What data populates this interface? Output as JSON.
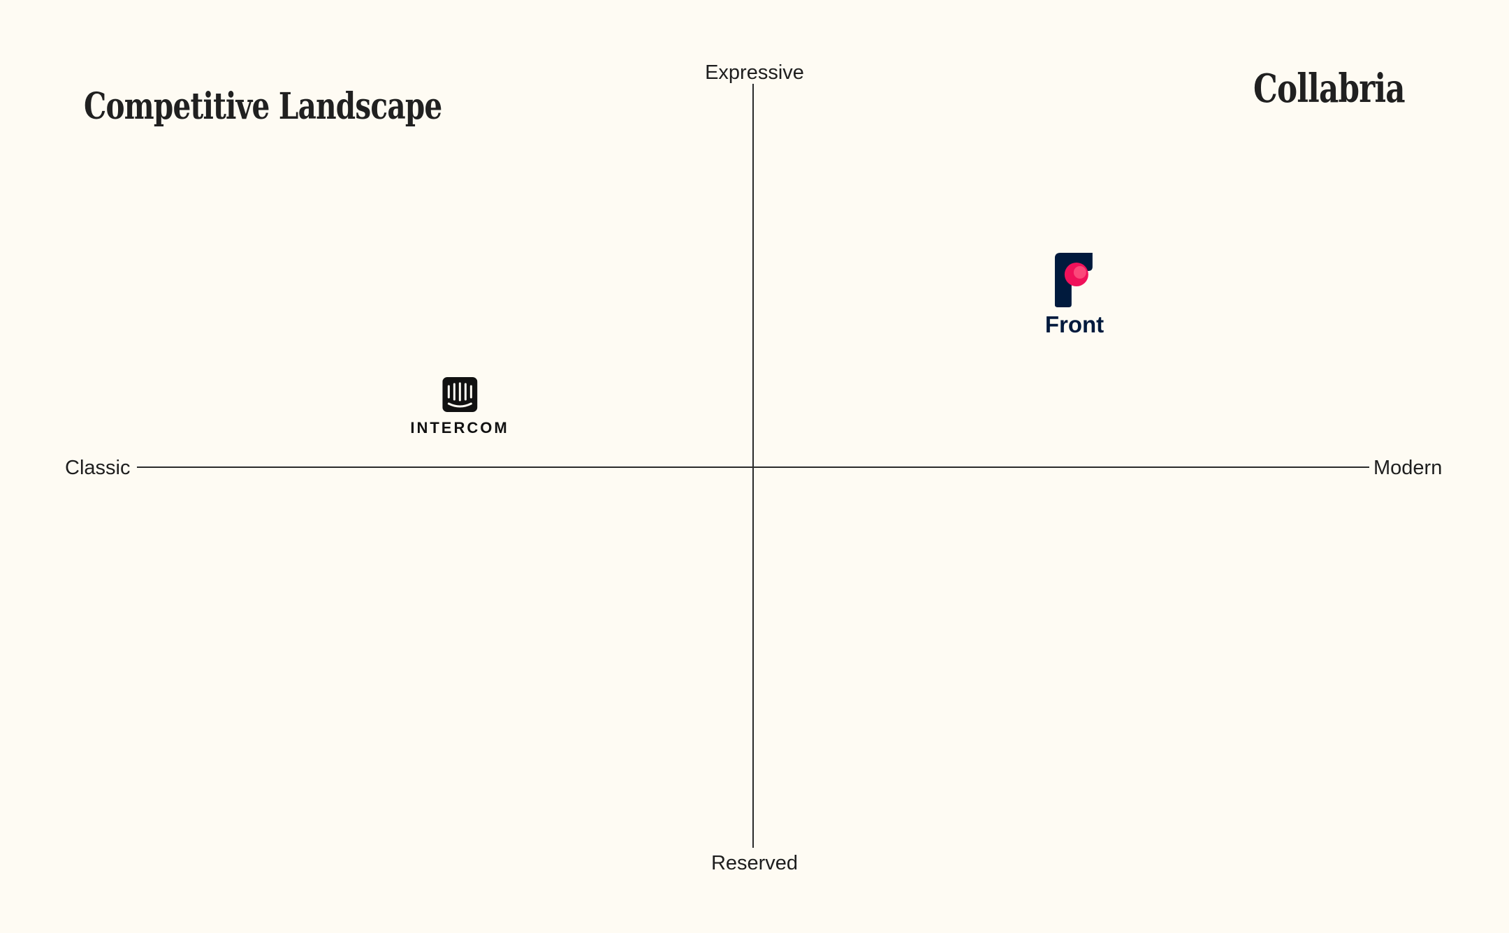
{
  "page": {
    "title": "Competitive Landscape",
    "brand": "Collabria",
    "background_color": "#fefbf3"
  },
  "axes": {
    "top_label": "Expressive",
    "bottom_label": "Reserved",
    "left_label": "Classic",
    "right_label": "Modern",
    "line_color": "#2a2a2a"
  },
  "competitors": [
    {
      "name": "INTERCOM",
      "icon": "intercom-logo-icon",
      "quadrant": "classic-expressive",
      "color": "#111111"
    },
    {
      "name": "Front",
      "icon": "front-logo-icon",
      "quadrant": "modern-expressive",
      "color": "#001a3d",
      "accent_color": "#f0115a"
    }
  ]
}
